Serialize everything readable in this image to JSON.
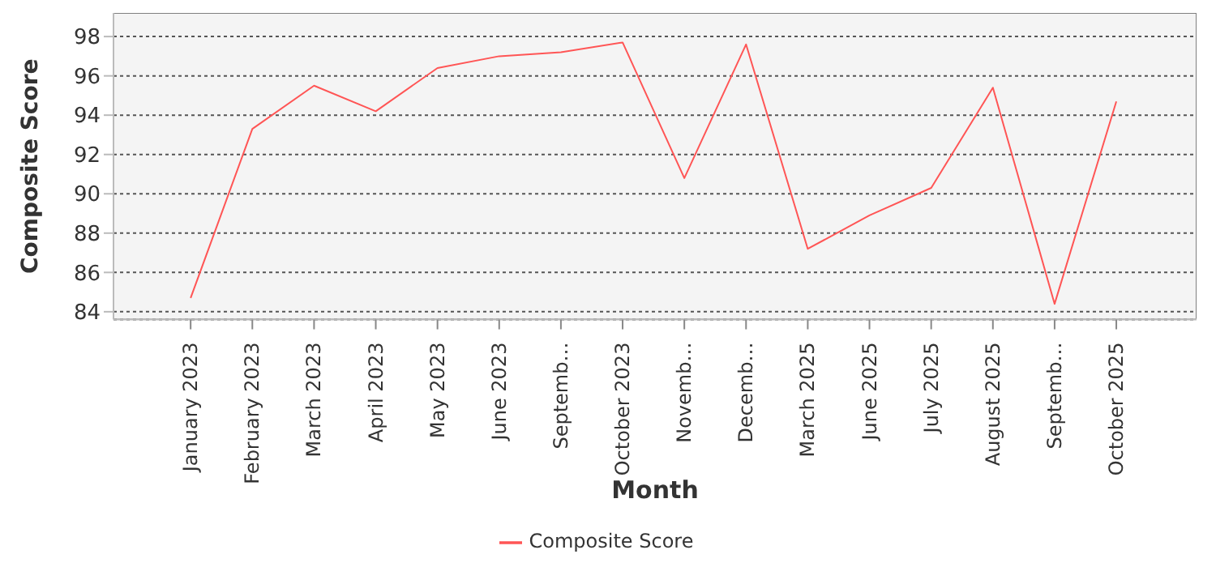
{
  "chart_data": {
    "type": "line",
    "xlabel": "Month",
    "ylabel": "Composite Score",
    "categories": [
      "January 2023",
      "February 2023",
      "March 2023",
      "April 2023",
      "May 2023",
      "June 2023",
      "Septemb…",
      "October 2023",
      "Novemb…",
      "Decemb…",
      "March 2025",
      "June 2025",
      "July 2025",
      "August 2025",
      "Septemb…",
      "October 2025"
    ],
    "series": [
      {
        "name": "Composite Score",
        "color": "#ff5555",
        "values": [
          84.7,
          93.3,
          95.5,
          94.2,
          96.4,
          97.0,
          97.2,
          97.7,
          90.8,
          97.6,
          87.2,
          88.9,
          90.3,
          95.4,
          84.4,
          94.7
        ]
      }
    ],
    "ylim": [
      83.6,
      99.2
    ],
    "yticks": [
      84,
      86,
      88,
      90,
      92,
      94,
      96,
      98
    ],
    "grid": "y",
    "legend": "bottom",
    "marker": "none",
    "line_style": "solid"
  }
}
